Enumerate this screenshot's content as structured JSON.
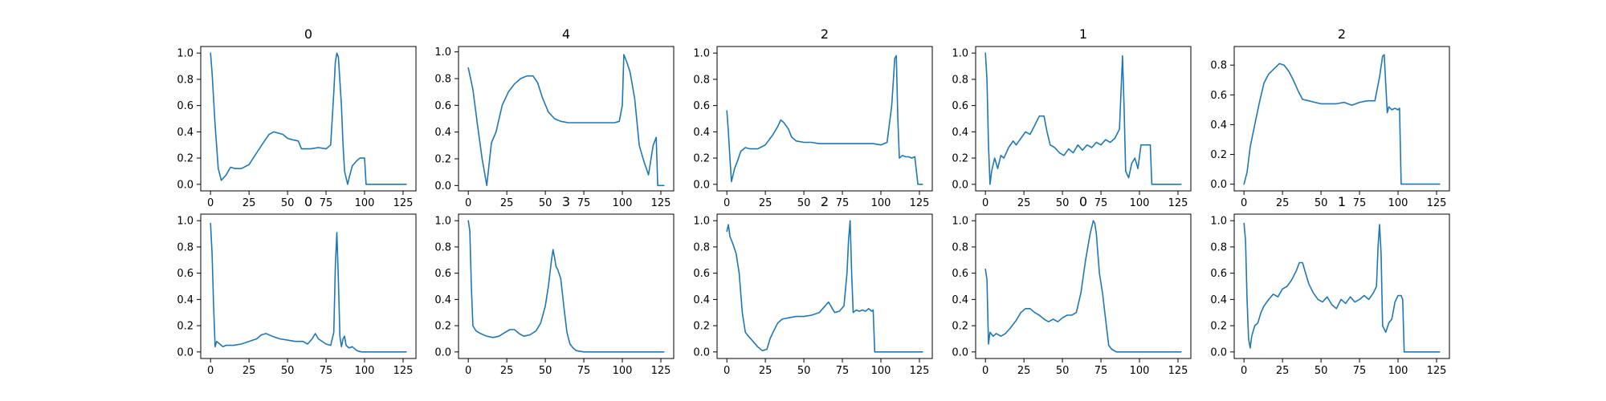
{
  "chart_data": [
    {
      "type": "line",
      "title": "0",
      "xlim": [
        -6.35,
        133.35
      ],
      "ylim": [
        -0.05,
        1.05
      ],
      "xticks": [
        0,
        25,
        50,
        75,
        100,
        125
      ],
      "yticks": [
        0.0,
        0.2,
        0.4,
        0.6,
        0.8,
        1.0
      ],
      "color": "#1f77b4",
      "series": [
        {
          "x": [
            0,
            1,
            3,
            5,
            7,
            10,
            13,
            16,
            20,
            25,
            30,
            35,
            38,
            41,
            44,
            47,
            50,
            53,
            57,
            59,
            61,
            65,
            70,
            75,
            78,
            80,
            81,
            82,
            83,
            85,
            86,
            87,
            89,
            90,
            92,
            95,
            97,
            100,
            101,
            105,
            110,
            120,
            127
          ],
          "y": [
            1.0,
            0.85,
            0.45,
            0.12,
            0.03,
            0.07,
            0.13,
            0.12,
            0.12,
            0.15,
            0.24,
            0.33,
            0.38,
            0.4,
            0.39,
            0.38,
            0.35,
            0.34,
            0.33,
            0.27,
            0.27,
            0.27,
            0.28,
            0.27,
            0.3,
            0.7,
            0.93,
            1.0,
            0.97,
            0.6,
            0.3,
            0.1,
            0.0,
            0.05,
            0.14,
            0.18,
            0.2,
            0.2,
            0.0,
            0.0,
            0.0,
            0.0,
            0.0
          ]
        }
      ]
    },
    {
      "type": "line",
      "title": "4",
      "xlim": [
        -6.35,
        133.35
      ],
      "ylim": [
        -0.04,
        1.04
      ],
      "xticks": [
        0,
        25,
        50,
        75,
        100,
        125
      ],
      "yticks": [
        0.0,
        0.2,
        0.4,
        0.6,
        0.8,
        1.0
      ],
      "color": "#1f77b4",
      "series": [
        {
          "x": [
            0,
            3,
            6,
            9,
            12,
            15,
            18,
            22,
            26,
            30,
            34,
            38,
            42,
            45,
            48,
            52,
            56,
            60,
            65,
            70,
            75,
            80,
            85,
            90,
            95,
            98,
            100,
            101,
            103,
            105,
            108,
            111,
            114,
            117,
            120,
            122,
            123,
            124,
            125,
            127
          ],
          "y": [
            0.88,
            0.72,
            0.45,
            0.2,
            0.0,
            0.32,
            0.4,
            0.6,
            0.7,
            0.76,
            0.8,
            0.82,
            0.82,
            0.77,
            0.66,
            0.55,
            0.5,
            0.48,
            0.47,
            0.47,
            0.47,
            0.47,
            0.47,
            0.47,
            0.47,
            0.48,
            0.6,
            0.98,
            0.92,
            0.85,
            0.65,
            0.3,
            0.18,
            0.08,
            0.3,
            0.36,
            0.0,
            0.0,
            0.0,
            0.0
          ]
        }
      ]
    },
    {
      "type": "line",
      "title": "2",
      "xlim": [
        -6.35,
        133.35
      ],
      "ylim": [
        -0.05,
        1.05
      ],
      "xticks": [
        0,
        25,
        50,
        75,
        100,
        125
      ],
      "yticks": [
        0.0,
        0.2,
        0.4,
        0.6,
        0.8,
        1.0
      ],
      "color": "#1f77b4",
      "series": [
        {
          "x": [
            0,
            1,
            2,
            3,
            5,
            7,
            9,
            12,
            15,
            20,
            25,
            30,
            33,
            35,
            37,
            40,
            42,
            45,
            50,
            55,
            60,
            65,
            70,
            75,
            80,
            85,
            90,
            95,
            100,
            104,
            107,
            109,
            110,
            111,
            112,
            114,
            116,
            118,
            120,
            122,
            124,
            125,
            127
          ],
          "y": [
            0.56,
            0.4,
            0.2,
            0.02,
            0.12,
            0.18,
            0.25,
            0.28,
            0.27,
            0.27,
            0.3,
            0.38,
            0.44,
            0.49,
            0.47,
            0.42,
            0.36,
            0.33,
            0.32,
            0.32,
            0.31,
            0.31,
            0.31,
            0.31,
            0.31,
            0.31,
            0.31,
            0.31,
            0.3,
            0.32,
            0.6,
            0.96,
            0.98,
            0.5,
            0.2,
            0.22,
            0.21,
            0.21,
            0.2,
            0.21,
            0.0,
            0.0,
            0.0
          ]
        }
      ]
    },
    {
      "type": "line",
      "title": "1",
      "xlim": [
        -6.35,
        133.35
      ],
      "ylim": [
        -0.05,
        1.05
      ],
      "xticks": [
        0,
        25,
        50,
        75,
        100,
        125
      ],
      "yticks": [
        0.0,
        0.2,
        0.4,
        0.6,
        0.8,
        1.0
      ],
      "color": "#1f77b4",
      "series": [
        {
          "x": [
            0,
            1,
            2,
            3,
            4,
            6,
            8,
            10,
            12,
            15,
            18,
            20,
            23,
            26,
            29,
            32,
            35,
            38,
            40,
            42,
            45,
            48,
            51,
            54,
            57,
            60,
            63,
            66,
            69,
            72,
            75,
            78,
            81,
            84,
            87,
            88,
            89,
            90,
            91,
            93,
            95,
            97,
            99,
            101,
            104,
            107,
            108,
            110,
            115,
            127
          ],
          "y": [
            1.0,
            0.8,
            0.3,
            0.0,
            0.1,
            0.2,
            0.12,
            0.22,
            0.2,
            0.28,
            0.33,
            0.3,
            0.35,
            0.4,
            0.38,
            0.45,
            0.52,
            0.52,
            0.4,
            0.3,
            0.28,
            0.24,
            0.22,
            0.27,
            0.24,
            0.3,
            0.26,
            0.3,
            0.28,
            0.32,
            0.3,
            0.34,
            0.32,
            0.35,
            0.42,
            0.7,
            0.98,
            0.6,
            0.1,
            0.05,
            0.16,
            0.2,
            0.12,
            0.3,
            0.3,
            0.3,
            0.0,
            0.0,
            0.0,
            0.0
          ]
        }
      ]
    },
    {
      "type": "line",
      "title": "2",
      "xlim": [
        -6.35,
        133.35
      ],
      "ylim": [
        -0.045,
        0.925
      ],
      "xticks": [
        0,
        25,
        50,
        75,
        100,
        125
      ],
      "yticks": [
        0.0,
        0.2,
        0.4,
        0.6,
        0.8
      ],
      "color": "#1f77b4",
      "series": [
        {
          "x": [
            0,
            2,
            4,
            7,
            10,
            13,
            16,
            20,
            23,
            26,
            29,
            32,
            35,
            38,
            42,
            46,
            50,
            55,
            60,
            65,
            70,
            75,
            80,
            85,
            88,
            90,
            91,
            93,
            94,
            96,
            98,
            100,
            101,
            102,
            103,
            110,
            127
          ],
          "y": [
            0.0,
            0.08,
            0.25,
            0.4,
            0.55,
            0.68,
            0.74,
            0.78,
            0.81,
            0.8,
            0.76,
            0.7,
            0.63,
            0.57,
            0.56,
            0.55,
            0.54,
            0.54,
            0.54,
            0.55,
            0.53,
            0.55,
            0.56,
            0.56,
            0.72,
            0.86,
            0.87,
            0.48,
            0.52,
            0.5,
            0.51,
            0.5,
            0.51,
            0.0,
            0.0,
            0.0,
            0.0
          ]
        }
      ]
    },
    {
      "type": "line",
      "title": "0",
      "xlim": [
        -6.35,
        133.35
      ],
      "ylim": [
        -0.05,
        1.05
      ],
      "xticks": [
        0,
        25,
        50,
        75,
        100,
        125
      ],
      "yticks": [
        0.0,
        0.2,
        0.4,
        0.6,
        0.8,
        1.0
      ],
      "color": "#1f77b4",
      "series": [
        {
          "x": [
            0,
            1,
            2,
            3,
            4,
            6,
            8,
            10,
            15,
            20,
            25,
            30,
            33,
            36,
            40,
            45,
            50,
            55,
            60,
            63,
            66,
            68,
            70,
            75,
            78,
            80,
            81,
            82,
            83,
            84,
            85,
            86,
            87,
            88,
            90,
            92,
            95,
            98,
            100,
            110,
            127
          ],
          "y": [
            0.98,
            0.75,
            0.35,
            0.04,
            0.08,
            0.06,
            0.04,
            0.05,
            0.05,
            0.06,
            0.08,
            0.1,
            0.13,
            0.14,
            0.12,
            0.1,
            0.09,
            0.08,
            0.08,
            0.06,
            0.1,
            0.14,
            0.1,
            0.06,
            0.05,
            0.15,
            0.65,
            0.91,
            0.55,
            0.12,
            0.04,
            0.1,
            0.12,
            0.05,
            0.03,
            0.04,
            0.01,
            0.0,
            0.0,
            0.0,
            0.0
          ]
        }
      ]
    },
    {
      "type": "line",
      "title": "3",
      "xlim": [
        -6.35,
        133.35
      ],
      "ylim": [
        -0.05,
        1.05
      ],
      "xticks": [
        0,
        25,
        50,
        75,
        100,
        125
      ],
      "yticks": [
        0.0,
        0.2,
        0.4,
        0.6,
        0.8,
        1.0
      ],
      "color": "#1f77b4",
      "series": [
        {
          "x": [
            0,
            1,
            2,
            3,
            5,
            8,
            12,
            16,
            20,
            24,
            27,
            30,
            33,
            36,
            40,
            44,
            47,
            50,
            52,
            54,
            55,
            56,
            57,
            58,
            60,
            62,
            64,
            66,
            68,
            70,
            75,
            80,
            90,
            100,
            110,
            127
          ],
          "y": [
            1.0,
            0.92,
            0.5,
            0.2,
            0.16,
            0.14,
            0.12,
            0.11,
            0.12,
            0.15,
            0.17,
            0.17,
            0.14,
            0.12,
            0.13,
            0.16,
            0.22,
            0.35,
            0.5,
            0.7,
            0.78,
            0.72,
            0.65,
            0.63,
            0.56,
            0.35,
            0.15,
            0.06,
            0.03,
            0.01,
            0.0,
            0.0,
            0.0,
            0.0,
            0.0,
            0.0
          ]
        }
      ]
    },
    {
      "type": "line",
      "title": "2",
      "xlim": [
        -6.35,
        133.35
      ],
      "ylim": [
        -0.05,
        1.05
      ],
      "xticks": [
        0,
        25,
        50,
        75,
        100,
        125
      ],
      "yticks": [
        0.0,
        0.2,
        0.4,
        0.6,
        0.8,
        1.0
      ],
      "color": "#1f77b4",
      "series": [
        {
          "x": [
            0,
            1,
            2,
            4,
            6,
            8,
            10,
            12,
            14,
            17,
            20,
            23,
            26,
            28,
            30,
            33,
            36,
            40,
            45,
            50,
            55,
            60,
            63,
            66,
            68,
            70,
            73,
            76,
            78,
            79,
            80,
            81,
            82,
            84,
            86,
            88,
            90,
            92,
            94,
            95,
            96,
            100,
            110,
            127
          ],
          "y": [
            0.92,
            0.97,
            0.88,
            0.82,
            0.75,
            0.6,
            0.3,
            0.15,
            0.12,
            0.08,
            0.04,
            0.01,
            0.02,
            0.1,
            0.15,
            0.22,
            0.25,
            0.26,
            0.27,
            0.27,
            0.28,
            0.3,
            0.34,
            0.38,
            0.34,
            0.3,
            0.31,
            0.35,
            0.6,
            0.85,
            1.0,
            0.6,
            0.3,
            0.32,
            0.31,
            0.32,
            0.31,
            0.33,
            0.31,
            0.32,
            0.0,
            0.0,
            0.0,
            0.0
          ]
        }
      ]
    },
    {
      "type": "line",
      "title": "0",
      "xlim": [
        -6.35,
        133.35
      ],
      "ylim": [
        -0.05,
        1.05
      ],
      "xticks": [
        0,
        25,
        50,
        75,
        100,
        125
      ],
      "yticks": [
        0.0,
        0.2,
        0.4,
        0.6,
        0.8,
        1.0
      ],
      "color": "#1f77b4",
      "series": [
        {
          "x": [
            0,
            1,
            2,
            3,
            5,
            7,
            10,
            13,
            16,
            20,
            23,
            26,
            29,
            32,
            35,
            38,
            41,
            44,
            47,
            50,
            53,
            56,
            59,
            62,
            65,
            68,
            70,
            71,
            72,
            74,
            76,
            78,
            80,
            82,
            85,
            90,
            100,
            110,
            127
          ],
          "y": [
            0.63,
            0.55,
            0.06,
            0.15,
            0.12,
            0.14,
            0.12,
            0.14,
            0.18,
            0.24,
            0.3,
            0.33,
            0.33,
            0.3,
            0.28,
            0.25,
            0.23,
            0.25,
            0.23,
            0.26,
            0.28,
            0.28,
            0.3,
            0.45,
            0.7,
            0.9,
            1.0,
            0.98,
            0.9,
            0.6,
            0.45,
            0.25,
            0.05,
            0.02,
            0.0,
            0.0,
            0.0,
            0.0,
            0.0
          ]
        }
      ]
    },
    {
      "type": "line",
      "title": "1",
      "xlim": [
        -6.35,
        133.35
      ],
      "ylim": [
        -0.05,
        1.05
      ],
      "xticks": [
        0,
        25,
        50,
        75,
        100,
        125
      ],
      "yticks": [
        0.0,
        0.2,
        0.4,
        0.6,
        0.8,
        1.0
      ],
      "color": "#1f77b4",
      "series": [
        {
          "x": [
            0,
            1,
            2,
            3,
            4,
            5,
            7,
            9,
            11,
            13,
            16,
            19,
            22,
            25,
            28,
            31,
            34,
            36,
            38,
            40,
            42,
            45,
            48,
            51,
            54,
            57,
            60,
            63,
            66,
            69,
            72,
            75,
            78,
            81,
            84,
            86,
            87,
            88,
            89,
            90,
            92,
            94,
            96,
            98,
            100,
            102,
            103,
            104,
            110,
            127
          ],
          "y": [
            0.98,
            0.85,
            0.4,
            0.1,
            0.03,
            0.12,
            0.2,
            0.22,
            0.3,
            0.35,
            0.4,
            0.44,
            0.42,
            0.48,
            0.5,
            0.55,
            0.62,
            0.68,
            0.68,
            0.6,
            0.52,
            0.45,
            0.4,
            0.38,
            0.42,
            0.36,
            0.33,
            0.4,
            0.37,
            0.42,
            0.38,
            0.4,
            0.43,
            0.4,
            0.45,
            0.5,
            0.8,
            0.97,
            0.75,
            0.2,
            0.15,
            0.22,
            0.25,
            0.38,
            0.43,
            0.43,
            0.4,
            0.0,
            0.0,
            0.0
          ]
        }
      ]
    }
  ]
}
